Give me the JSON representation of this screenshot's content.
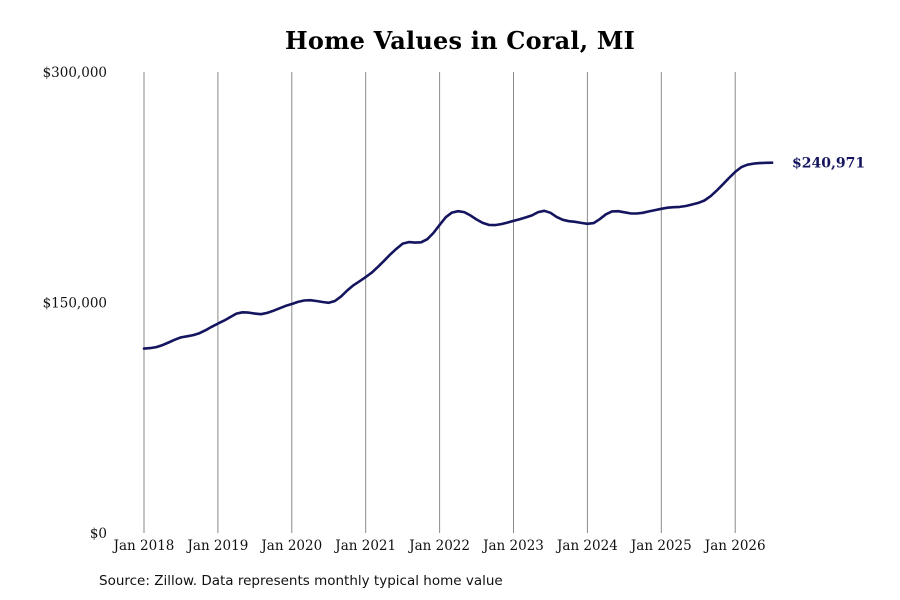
{
  "title": "Home Values in Coral, MI",
  "source": "Source: Zillow. Data represents monthly typical home value",
  "colors": {
    "line": "#15155f",
    "grid": "#8a8a8a",
    "end_label": "#15155f"
  },
  "chart_data": {
    "type": "line",
    "title": "Home Values in Coral, MI",
    "xlabel": "",
    "ylabel": "",
    "x_ticks": [
      "Jan 2018",
      "Jan 2019",
      "Jan 2020",
      "Jan 2021",
      "Jan 2022",
      "Jan 2023",
      "Jan 2024",
      "Jan 2025",
      "Jan 2026"
    ],
    "y_ticks": [
      "$0",
      "$150,000",
      "$300,000"
    ],
    "y_tick_values": [
      0,
      150000,
      300000
    ],
    "ylim": [
      0,
      300000
    ],
    "xlim": [
      "2018-01",
      "2026-08"
    ],
    "grid": "vertical lines at each January",
    "end_label": "$240,971",
    "series": [
      {
        "values": [
          {
            "x": "2018-01",
            "y": 120000
          },
          {
            "x": "2018-02",
            "y": 120300
          },
          {
            "x": "2018-03",
            "y": 121000
          },
          {
            "x": "2018-04",
            "y": 122300
          },
          {
            "x": "2018-05",
            "y": 124000
          },
          {
            "x": "2018-06",
            "y": 125800
          },
          {
            "x": "2018-07",
            "y": 127300
          },
          {
            "x": "2018-08",
            "y": 128000
          },
          {
            "x": "2018-09",
            "y": 128800
          },
          {
            "x": "2018-10",
            "y": 130000
          },
          {
            "x": "2018-11",
            "y": 132000
          },
          {
            "x": "2018-12",
            "y": 134200
          },
          {
            "x": "2019-01",
            "y": 136300
          },
          {
            "x": "2019-02",
            "y": 138200
          },
          {
            "x": "2019-03",
            "y": 140500
          },
          {
            "x": "2019-04",
            "y": 142800
          },
          {
            "x": "2019-05",
            "y": 143600
          },
          {
            "x": "2019-06",
            "y": 143400
          },
          {
            "x": "2019-07",
            "y": 142800
          },
          {
            "x": "2019-08",
            "y": 142400
          },
          {
            "x": "2019-09",
            "y": 143200
          },
          {
            "x": "2019-10",
            "y": 144600
          },
          {
            "x": "2019-11",
            "y": 146200
          },
          {
            "x": "2019-12",
            "y": 147800
          },
          {
            "x": "2020-01",
            "y": 149000
          },
          {
            "x": "2020-02",
            "y": 150400
          },
          {
            "x": "2020-03",
            "y": 151300
          },
          {
            "x": "2020-04",
            "y": 151500
          },
          {
            "x": "2020-05",
            "y": 151000
          },
          {
            "x": "2020-06",
            "y": 150300
          },
          {
            "x": "2020-07",
            "y": 149800
          },
          {
            "x": "2020-08",
            "y": 151000
          },
          {
            "x": "2020-09",
            "y": 154000
          },
          {
            "x": "2020-10",
            "y": 157800
          },
          {
            "x": "2020-11",
            "y": 161200
          },
          {
            "x": "2020-12",
            "y": 163800
          },
          {
            "x": "2021-01",
            "y": 166500
          },
          {
            "x": "2021-02",
            "y": 169500
          },
          {
            "x": "2021-03",
            "y": 173200
          },
          {
            "x": "2021-04",
            "y": 177200
          },
          {
            "x": "2021-05",
            "y": 181300
          },
          {
            "x": "2021-06",
            "y": 185000
          },
          {
            "x": "2021-07",
            "y": 188300
          },
          {
            "x": "2021-08",
            "y": 189300
          },
          {
            "x": "2021-09",
            "y": 189000
          },
          {
            "x": "2021-10",
            "y": 189200
          },
          {
            "x": "2021-11",
            "y": 191200
          },
          {
            "x": "2021-12",
            "y": 195200
          },
          {
            "x": "2022-01",
            "y": 200500
          },
          {
            "x": "2022-02",
            "y": 205500
          },
          {
            "x": "2022-03",
            "y": 208500
          },
          {
            "x": "2022-04",
            "y": 209400
          },
          {
            "x": "2022-05",
            "y": 208800
          },
          {
            "x": "2022-06",
            "y": 206700
          },
          {
            "x": "2022-07",
            "y": 204000
          },
          {
            "x": "2022-08",
            "y": 201800
          },
          {
            "x": "2022-09",
            "y": 200500
          },
          {
            "x": "2022-10",
            "y": 200400
          },
          {
            "x": "2022-11",
            "y": 201000
          },
          {
            "x": "2022-12",
            "y": 202000
          },
          {
            "x": "2023-01",
            "y": 203100
          },
          {
            "x": "2023-02",
            "y": 204200
          },
          {
            "x": "2023-03",
            "y": 205400
          },
          {
            "x": "2023-04",
            "y": 206700
          },
          {
            "x": "2023-05",
            "y": 208800
          },
          {
            "x": "2023-06",
            "y": 209700
          },
          {
            "x": "2023-07",
            "y": 208400
          },
          {
            "x": "2023-08",
            "y": 205700
          },
          {
            "x": "2023-09",
            "y": 203800
          },
          {
            "x": "2023-10",
            "y": 202900
          },
          {
            "x": "2023-11",
            "y": 202500
          },
          {
            "x": "2023-12",
            "y": 201800
          },
          {
            "x": "2024-01",
            "y": 201200
          },
          {
            "x": "2024-02",
            "y": 201700
          },
          {
            "x": "2024-03",
            "y": 204200
          },
          {
            "x": "2024-04",
            "y": 207400
          },
          {
            "x": "2024-05",
            "y": 209300
          },
          {
            "x": "2024-06",
            "y": 209400
          },
          {
            "x": "2024-07",
            "y": 208700
          },
          {
            "x": "2024-08",
            "y": 208000
          },
          {
            "x": "2024-09",
            "y": 207900
          },
          {
            "x": "2024-10",
            "y": 208400
          },
          {
            "x": "2024-11",
            "y": 209300
          },
          {
            "x": "2024-12",
            "y": 210100
          },
          {
            "x": "2025-01",
            "y": 211000
          },
          {
            "x": "2025-02",
            "y": 211700
          },
          {
            "x": "2025-03",
            "y": 212000
          },
          {
            "x": "2025-04",
            "y": 212200
          },
          {
            "x": "2025-05",
            "y": 212800
          },
          {
            "x": "2025-06",
            "y": 213800
          },
          {
            "x": "2025-07",
            "y": 214800
          },
          {
            "x": "2025-08",
            "y": 216400
          },
          {
            "x": "2025-09",
            "y": 219200
          },
          {
            "x": "2025-10",
            "y": 222800
          },
          {
            "x": "2025-11",
            "y": 226900
          },
          {
            "x": "2025-12",
            "y": 231000
          },
          {
            "x": "2026-01",
            "y": 235000
          },
          {
            "x": "2026-02",
            "y": 238100
          },
          {
            "x": "2026-03",
            "y": 239700
          },
          {
            "x": "2026-04",
            "y": 240400
          },
          {
            "x": "2026-05",
            "y": 240700
          },
          {
            "x": "2026-06",
            "y": 240900
          },
          {
            "x": "2026-07",
            "y": 240971
          }
        ]
      }
    ]
  }
}
